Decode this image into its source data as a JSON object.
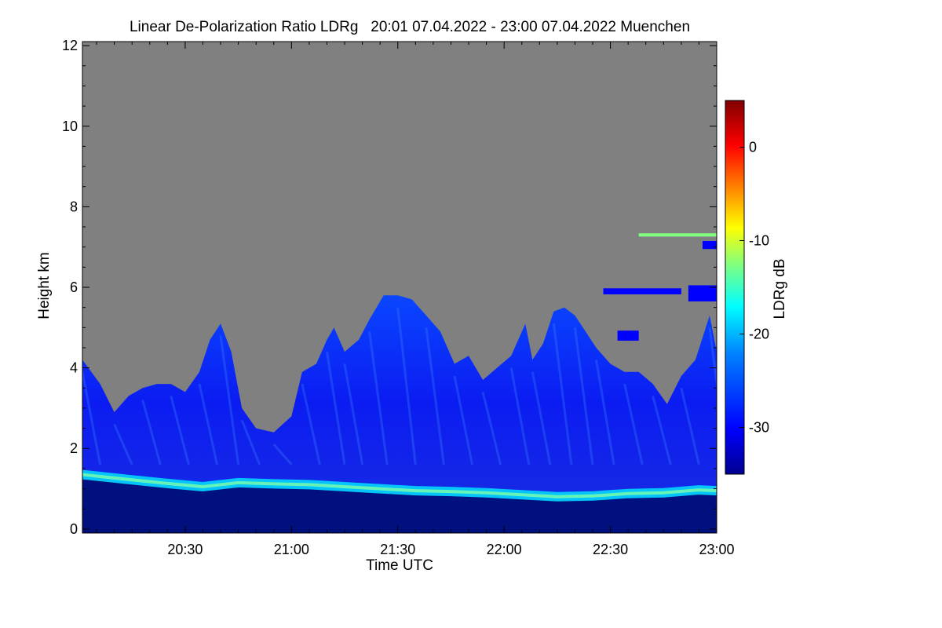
{
  "chart_data": {
    "type": "heatmap",
    "title": "Linear De-Polarization Ratio LDRg   20:01 07.04.2022 - 23:00 07.04.2022 Muenchen",
    "xlabel": "Time UTC",
    "ylabel": "Height km",
    "colorbar_label": "LDRg dB",
    "x_ticks": [
      "20:30",
      "21:00",
      "21:30",
      "22:00",
      "22:30",
      "23:00"
    ],
    "x_tick_minutes": [
      30,
      60,
      90,
      120,
      150,
      180
    ],
    "x_range_minutes": [
      1,
      180
    ],
    "y_ticks": [
      "0",
      "2",
      "4",
      "6",
      "8",
      "10",
      "12"
    ],
    "y_tick_values": [
      0,
      2,
      4,
      6,
      8,
      10,
      12
    ],
    "ylim": [
      -0.1,
      12.1
    ],
    "colorbar_ticks": [
      "0",
      "-10",
      "-20",
      "-30"
    ],
    "colorbar_tick_values": [
      0,
      -10,
      -20,
      -30
    ],
    "colorbar_range": [
      -35,
      5
    ],
    "no_signal_color": "#808080",
    "colormap": [
      "#00008f",
      "#0000ff",
      "#0080ff",
      "#00ffff",
      "#80ff80",
      "#ffff00",
      "#ff8000",
      "#ff0000",
      "#800000"
    ],
    "cloud_top_km": [
      [
        1,
        4.2
      ],
      [
        6,
        3.6
      ],
      [
        10,
        2.9
      ],
      [
        14,
        3.3
      ],
      [
        18,
        3.5
      ],
      [
        22,
        3.6
      ],
      [
        26,
        3.6
      ],
      [
        30,
        3.4
      ],
      [
        34,
        3.9
      ],
      [
        37,
        4.7
      ],
      [
        40,
        5.1
      ],
      [
        43,
        4.4
      ],
      [
        46,
        3.0
      ],
      [
        50,
        2.5
      ],
      [
        55,
        2.4
      ],
      [
        60,
        2.8
      ],
      [
        63,
        3.9
      ],
      [
        67,
        4.1
      ],
      [
        70,
        4.7
      ],
      [
        72,
        5.0
      ],
      [
        75,
        4.4
      ],
      [
        79,
        4.7
      ],
      [
        82,
        5.2
      ],
      [
        86,
        5.8
      ],
      [
        90,
        5.8
      ],
      [
        94,
        5.7
      ],
      [
        98,
        5.3
      ],
      [
        102,
        4.9
      ],
      [
        106,
        4.1
      ],
      [
        110,
        4.3
      ],
      [
        114,
        3.7
      ],
      [
        118,
        4.0
      ],
      [
        122,
        4.3
      ],
      [
        126,
        5.1
      ],
      [
        128,
        4.2
      ],
      [
        131,
        4.6
      ],
      [
        134,
        5.4
      ],
      [
        137,
        5.5
      ],
      [
        140,
        5.3
      ],
      [
        143,
        4.9
      ],
      [
        146,
        4.5
      ],
      [
        150,
        4.1
      ],
      [
        154,
        3.9
      ],
      [
        158,
        3.9
      ],
      [
        162,
        3.6
      ],
      [
        166,
        3.1
      ],
      [
        170,
        3.8
      ],
      [
        174,
        4.2
      ],
      [
        178,
        5.3
      ],
      [
        180,
        4.4
      ]
    ],
    "bright_layer_km": [
      [
        1,
        1.35
      ],
      [
        15,
        1.22
      ],
      [
        25,
        1.13
      ],
      [
        35,
        1.05
      ],
      [
        45,
        1.15
      ],
      [
        55,
        1.12
      ],
      [
        65,
        1.1
      ],
      [
        75,
        1.05
      ],
      [
        85,
        1.0
      ],
      [
        95,
        0.95
      ],
      [
        105,
        0.93
      ],
      [
        115,
        0.9
      ],
      [
        125,
        0.85
      ],
      [
        135,
        0.8
      ],
      [
        145,
        0.82
      ],
      [
        155,
        0.88
      ],
      [
        165,
        0.9
      ],
      [
        175,
        0.97
      ],
      [
        180,
        0.95
      ]
    ],
    "elevated_layers": [
      {
        "start": 148,
        "end": 170,
        "height_km": 5.9,
        "thickness_km": 0.15,
        "ldr_db": -30
      },
      {
        "start": 172,
        "end": 180,
        "height_km": 5.85,
        "thickness_km": 0.4,
        "ldr_db": -30
      },
      {
        "start": 158,
        "end": 180,
        "height_km": 7.3,
        "thickness_km": 0.08,
        "ldr_db": -14
      },
      {
        "start": 176,
        "end": 180,
        "height_km": 7.05,
        "thickness_km": 0.2,
        "ldr_db": -28
      },
      {
        "start": 152,
        "end": 158,
        "height_km": 4.8,
        "thickness_km": 0.25,
        "ldr_db": -30
      }
    ]
  }
}
